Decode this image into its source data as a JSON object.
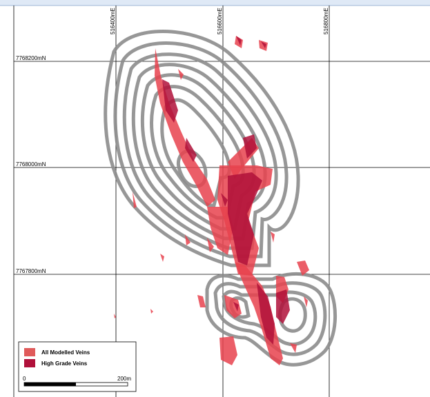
{
  "grid": {
    "easting_labels": [
      "516400mE",
      "516600mE",
      "516800mE"
    ],
    "northing_labels": [
      "7768200mN",
      "7768000mN",
      "7767800mN"
    ]
  },
  "legend": {
    "items": [
      {
        "label": "All Modelled Veins",
        "color": "#e05a5a"
      },
      {
        "label": "High Grade Veins",
        "color": "#b0103a"
      }
    ]
  },
  "scale_bar": {
    "start": "0",
    "end": "200m"
  },
  "colors": {
    "pit_shell": "#8c8c8c",
    "vein_all": "#e8424e",
    "vein_high": "#b0103a",
    "grid_line": "#000000"
  }
}
